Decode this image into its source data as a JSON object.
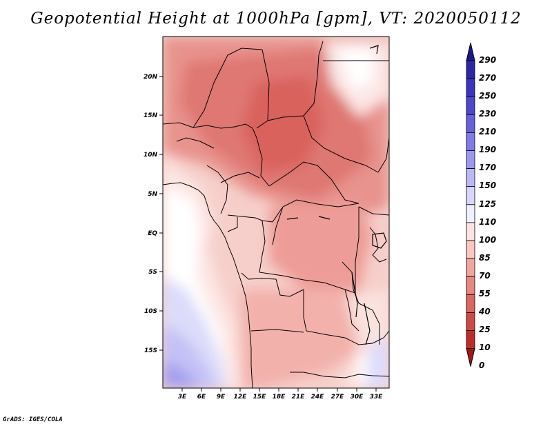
{
  "title": "Geopotential Height at 1000hPa [gpm], VT: 2020050112",
  "credit": "GrADS: IGES/COLA",
  "map": {
    "lat_labels": [
      "20N",
      "15N",
      "10N",
      "5N",
      "EQ",
      "5S",
      "10S",
      "15S"
    ],
    "lon_labels": [
      "3E",
      "6E",
      "9E",
      "12E",
      "15E",
      "18E",
      "21E",
      "24E",
      "27E",
      "30E",
      "33E"
    ]
  },
  "colorbar": {
    "levels": [
      "290",
      "270",
      "250",
      "230",
      "210",
      "190",
      "170",
      "150",
      "125",
      "110",
      "100",
      "85",
      "70",
      "55",
      "40",
      "25",
      "10",
      "0"
    ],
    "colors": [
      "#1b168e",
      "#2b26a6",
      "#3a34bd",
      "#4d47cc",
      "#6660db",
      "#7f7ae6",
      "#9d98ef",
      "#bbb8f5",
      "#d8d6fa",
      "#f0efff",
      "#fde3e1",
      "#f9c6c2",
      "#f2a5a0",
      "#e88680",
      "#db6660",
      "#ce4843",
      "#bd2d28",
      "#a81512"
    ]
  }
}
